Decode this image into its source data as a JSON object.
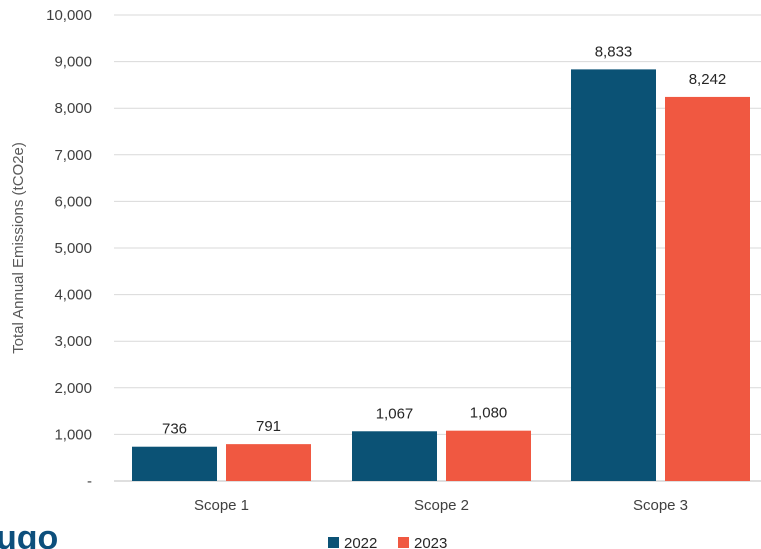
{
  "logo_text": "ugo",
  "chart_data": {
    "type": "bar",
    "categories": [
      "Scope 1",
      "Scope 2",
      "Scope 3"
    ],
    "series": [
      {
        "name": "2022",
        "values": [
          736,
          1067,
          8833
        ],
        "labels": [
          "736",
          "1,067",
          "8,833"
        ],
        "color": "#0b5275"
      },
      {
        "name": "2023",
        "values": [
          791,
          1080,
          8242
        ],
        "labels": [
          "791",
          "1,080",
          "8,242"
        ],
        "color": "#f05841"
      }
    ],
    "ylabel": "Total Annual Emissions (tCO2e)",
    "xlabel": "",
    "ylim": [
      0,
      10000
    ],
    "yticks": [
      "-",
      "1,000",
      "2,000",
      "3,000",
      "4,000",
      "5,000",
      "6,000",
      "7,000",
      "8,000",
      "9,000",
      "10,000"
    ],
    "grid": true,
    "legend_position": "bottom-center"
  }
}
